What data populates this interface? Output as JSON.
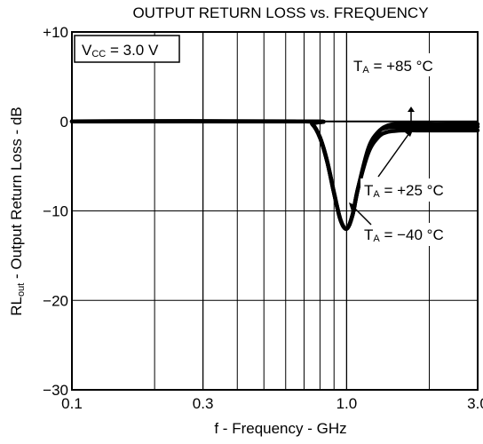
{
  "chart_data": {
    "type": "line",
    "title": "OUTPUT RETURN LOSS vs. FREQUENCY",
    "xlabel": "f - Frequency - GHz",
    "ylabel": {
      "prefix": "RL",
      "subscript": "out",
      "suffix": " - Output  Return Loss - dB"
    },
    "x_scale": "log",
    "xlim": [
      0.1,
      3.0
    ],
    "ylim": [
      -30,
      10
    ],
    "x_ticks": [
      0.1,
      0.3,
      1.0,
      3.0
    ],
    "x_tick_labels": [
      "0.1",
      "0.3",
      "1.0",
      "3.0"
    ],
    "x_minor_gridlines": [
      0.2,
      0.4,
      0.5,
      0.6,
      0.7,
      0.8,
      0.9,
      2.0
    ],
    "y_ticks": [
      10,
      0,
      -10,
      -20,
      -30
    ],
    "y_tick_labels": [
      "+10",
      "0",
      "−10",
      "−20",
      "−30"
    ],
    "grid": true,
    "conditions": {
      "vcc_prefix": "V",
      "vcc_sub": "CC",
      "vcc_value": " = 3.0 V"
    },
    "annotations": [
      {
        "prefix": "T",
        "sub": "A",
        "value": " = +85 °C"
      },
      {
        "prefix": "T",
        "sub": "A",
        "value": " = +25 °C"
      },
      {
        "prefix": "T",
        "sub": "A",
        "value": " = −40 °C"
      }
    ],
    "series": [
      {
        "name": "T_A = +85 °C",
        "x": [
          0.1,
          0.7,
          0.75,
          0.8,
          0.85,
          0.9,
          0.95,
          1.0,
          1.05,
          1.1,
          1.2,
          1.3,
          1.4,
          1.6,
          1.8,
          2.0,
          2.5,
          3.0
        ],
        "y": [
          0,
          0,
          -0.3,
          -1.8,
          -4.5,
          -8.0,
          -11.0,
          -12.0,
          -10.5,
          -7.5,
          -3.3,
          -1.3,
          -0.5,
          -0.2,
          -0.2,
          -0.3,
          -0.3,
          -0.3
        ]
      },
      {
        "name": "T_A = +25 °C",
        "x": [
          0.1,
          0.7,
          0.75,
          0.8,
          0.85,
          0.9,
          0.95,
          1.0,
          1.05,
          1.1,
          1.2,
          1.3,
          1.4,
          1.6,
          1.8,
          2.0,
          2.5,
          3.0
        ],
        "y": [
          0,
          0,
          -0.3,
          -1.8,
          -4.5,
          -8.0,
          -11.0,
          -12.0,
          -10.5,
          -7.5,
          -3.0,
          -1.2,
          -0.7,
          -0.6,
          -0.6,
          -0.6,
          -0.6,
          -0.6
        ]
      },
      {
        "name": "T_A = −40 °C",
        "x": [
          0.1,
          0.7,
          0.75,
          0.8,
          0.85,
          0.9,
          0.95,
          1.0,
          1.05,
          1.1,
          1.2,
          1.3,
          1.4,
          1.6,
          1.8,
          2.0,
          2.5,
          3.0
        ],
        "y": [
          0,
          0,
          -0.3,
          -1.8,
          -4.5,
          -8.0,
          -11.0,
          -12.0,
          -10.5,
          -7.5,
          -3.5,
          -1.8,
          -1.2,
          -1.0,
          -1.0,
          -1.0,
          -1.0,
          -1.0
        ]
      }
    ]
  }
}
